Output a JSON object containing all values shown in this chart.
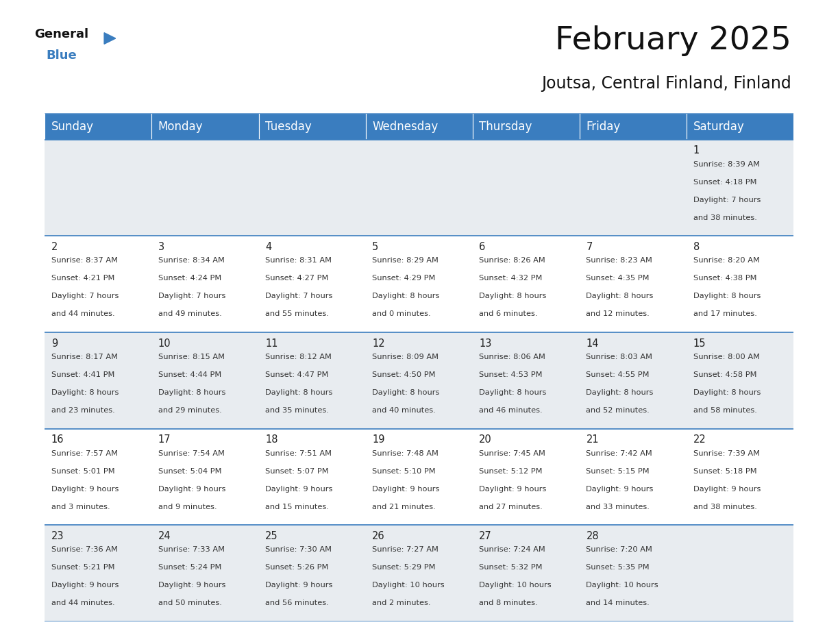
{
  "title": "February 2025",
  "subtitle": "Joutsa, Central Finland, Finland",
  "header_color": "#3a7dbf",
  "header_text_color": "#ffffff",
  "background_color": "#ffffff",
  "cell_bg_white": "#ffffff",
  "cell_bg_gray": "#e8ecf0",
  "days_of_week": [
    "Sunday",
    "Monday",
    "Tuesday",
    "Wednesday",
    "Thursday",
    "Friday",
    "Saturday"
  ],
  "title_fontsize": 34,
  "subtitle_fontsize": 17,
  "header_fontsize": 12,
  "cell_day_fontsize": 10.5,
  "cell_info_fontsize": 8.2,
  "line_color": "#3a7dbf",
  "logo_general_fontsize": 13,
  "logo_blue_fontsize": 13,
  "calendar_data": [
    [
      null,
      null,
      null,
      null,
      null,
      null,
      {
        "day": "1",
        "sunrise": "8:39 AM",
        "sunset": "4:18 PM",
        "daylight": "7 hours",
        "daylight2": "and 38 minutes."
      }
    ],
    [
      {
        "day": "2",
        "sunrise": "8:37 AM",
        "sunset": "4:21 PM",
        "daylight": "7 hours",
        "daylight2": "and 44 minutes."
      },
      {
        "day": "3",
        "sunrise": "8:34 AM",
        "sunset": "4:24 PM",
        "daylight": "7 hours",
        "daylight2": "and 49 minutes."
      },
      {
        "day": "4",
        "sunrise": "8:31 AM",
        "sunset": "4:27 PM",
        "daylight": "7 hours",
        "daylight2": "and 55 minutes."
      },
      {
        "day": "5",
        "sunrise": "8:29 AM",
        "sunset": "4:29 PM",
        "daylight": "8 hours",
        "daylight2": "and 0 minutes."
      },
      {
        "day": "6",
        "sunrise": "8:26 AM",
        "sunset": "4:32 PM",
        "daylight": "8 hours",
        "daylight2": "and 6 minutes."
      },
      {
        "day": "7",
        "sunrise": "8:23 AM",
        "sunset": "4:35 PM",
        "daylight": "8 hours",
        "daylight2": "and 12 minutes."
      },
      {
        "day": "8",
        "sunrise": "8:20 AM",
        "sunset": "4:38 PM",
        "daylight": "8 hours",
        "daylight2": "and 17 minutes."
      }
    ],
    [
      {
        "day": "9",
        "sunrise": "8:17 AM",
        "sunset": "4:41 PM",
        "daylight": "8 hours",
        "daylight2": "and 23 minutes."
      },
      {
        "day": "10",
        "sunrise": "8:15 AM",
        "sunset": "4:44 PM",
        "daylight": "8 hours",
        "daylight2": "and 29 minutes."
      },
      {
        "day": "11",
        "sunrise": "8:12 AM",
        "sunset": "4:47 PM",
        "daylight": "8 hours",
        "daylight2": "and 35 minutes."
      },
      {
        "day": "12",
        "sunrise": "8:09 AM",
        "sunset": "4:50 PM",
        "daylight": "8 hours",
        "daylight2": "and 40 minutes."
      },
      {
        "day": "13",
        "sunrise": "8:06 AM",
        "sunset": "4:53 PM",
        "daylight": "8 hours",
        "daylight2": "and 46 minutes."
      },
      {
        "day": "14",
        "sunrise": "8:03 AM",
        "sunset": "4:55 PM",
        "daylight": "8 hours",
        "daylight2": "and 52 minutes."
      },
      {
        "day": "15",
        "sunrise": "8:00 AM",
        "sunset": "4:58 PM",
        "daylight": "8 hours",
        "daylight2": "and 58 minutes."
      }
    ],
    [
      {
        "day": "16",
        "sunrise": "7:57 AM",
        "sunset": "5:01 PM",
        "daylight": "9 hours",
        "daylight2": "and 3 minutes."
      },
      {
        "day": "17",
        "sunrise": "7:54 AM",
        "sunset": "5:04 PM",
        "daylight": "9 hours",
        "daylight2": "and 9 minutes."
      },
      {
        "day": "18",
        "sunrise": "7:51 AM",
        "sunset": "5:07 PM",
        "daylight": "9 hours",
        "daylight2": "and 15 minutes."
      },
      {
        "day": "19",
        "sunrise": "7:48 AM",
        "sunset": "5:10 PM",
        "daylight": "9 hours",
        "daylight2": "and 21 minutes."
      },
      {
        "day": "20",
        "sunrise": "7:45 AM",
        "sunset": "5:12 PM",
        "daylight": "9 hours",
        "daylight2": "and 27 minutes."
      },
      {
        "day": "21",
        "sunrise": "7:42 AM",
        "sunset": "5:15 PM",
        "daylight": "9 hours",
        "daylight2": "and 33 minutes."
      },
      {
        "day": "22",
        "sunrise": "7:39 AM",
        "sunset": "5:18 PM",
        "daylight": "9 hours",
        "daylight2": "and 38 minutes."
      }
    ],
    [
      {
        "day": "23",
        "sunrise": "7:36 AM",
        "sunset": "5:21 PM",
        "daylight": "9 hours",
        "daylight2": "and 44 minutes."
      },
      {
        "day": "24",
        "sunrise": "7:33 AM",
        "sunset": "5:24 PM",
        "daylight": "9 hours",
        "daylight2": "and 50 minutes."
      },
      {
        "day": "25",
        "sunrise": "7:30 AM",
        "sunset": "5:26 PM",
        "daylight": "9 hours",
        "daylight2": "and 56 minutes."
      },
      {
        "day": "26",
        "sunrise": "7:27 AM",
        "sunset": "5:29 PM",
        "daylight": "10 hours",
        "daylight2": "and 2 minutes."
      },
      {
        "day": "27",
        "sunrise": "7:24 AM",
        "sunset": "5:32 PM",
        "daylight": "10 hours",
        "daylight2": "and 8 minutes."
      },
      {
        "day": "28",
        "sunrise": "7:20 AM",
        "sunset": "5:35 PM",
        "daylight": "10 hours",
        "daylight2": "and 14 minutes."
      },
      null
    ]
  ]
}
